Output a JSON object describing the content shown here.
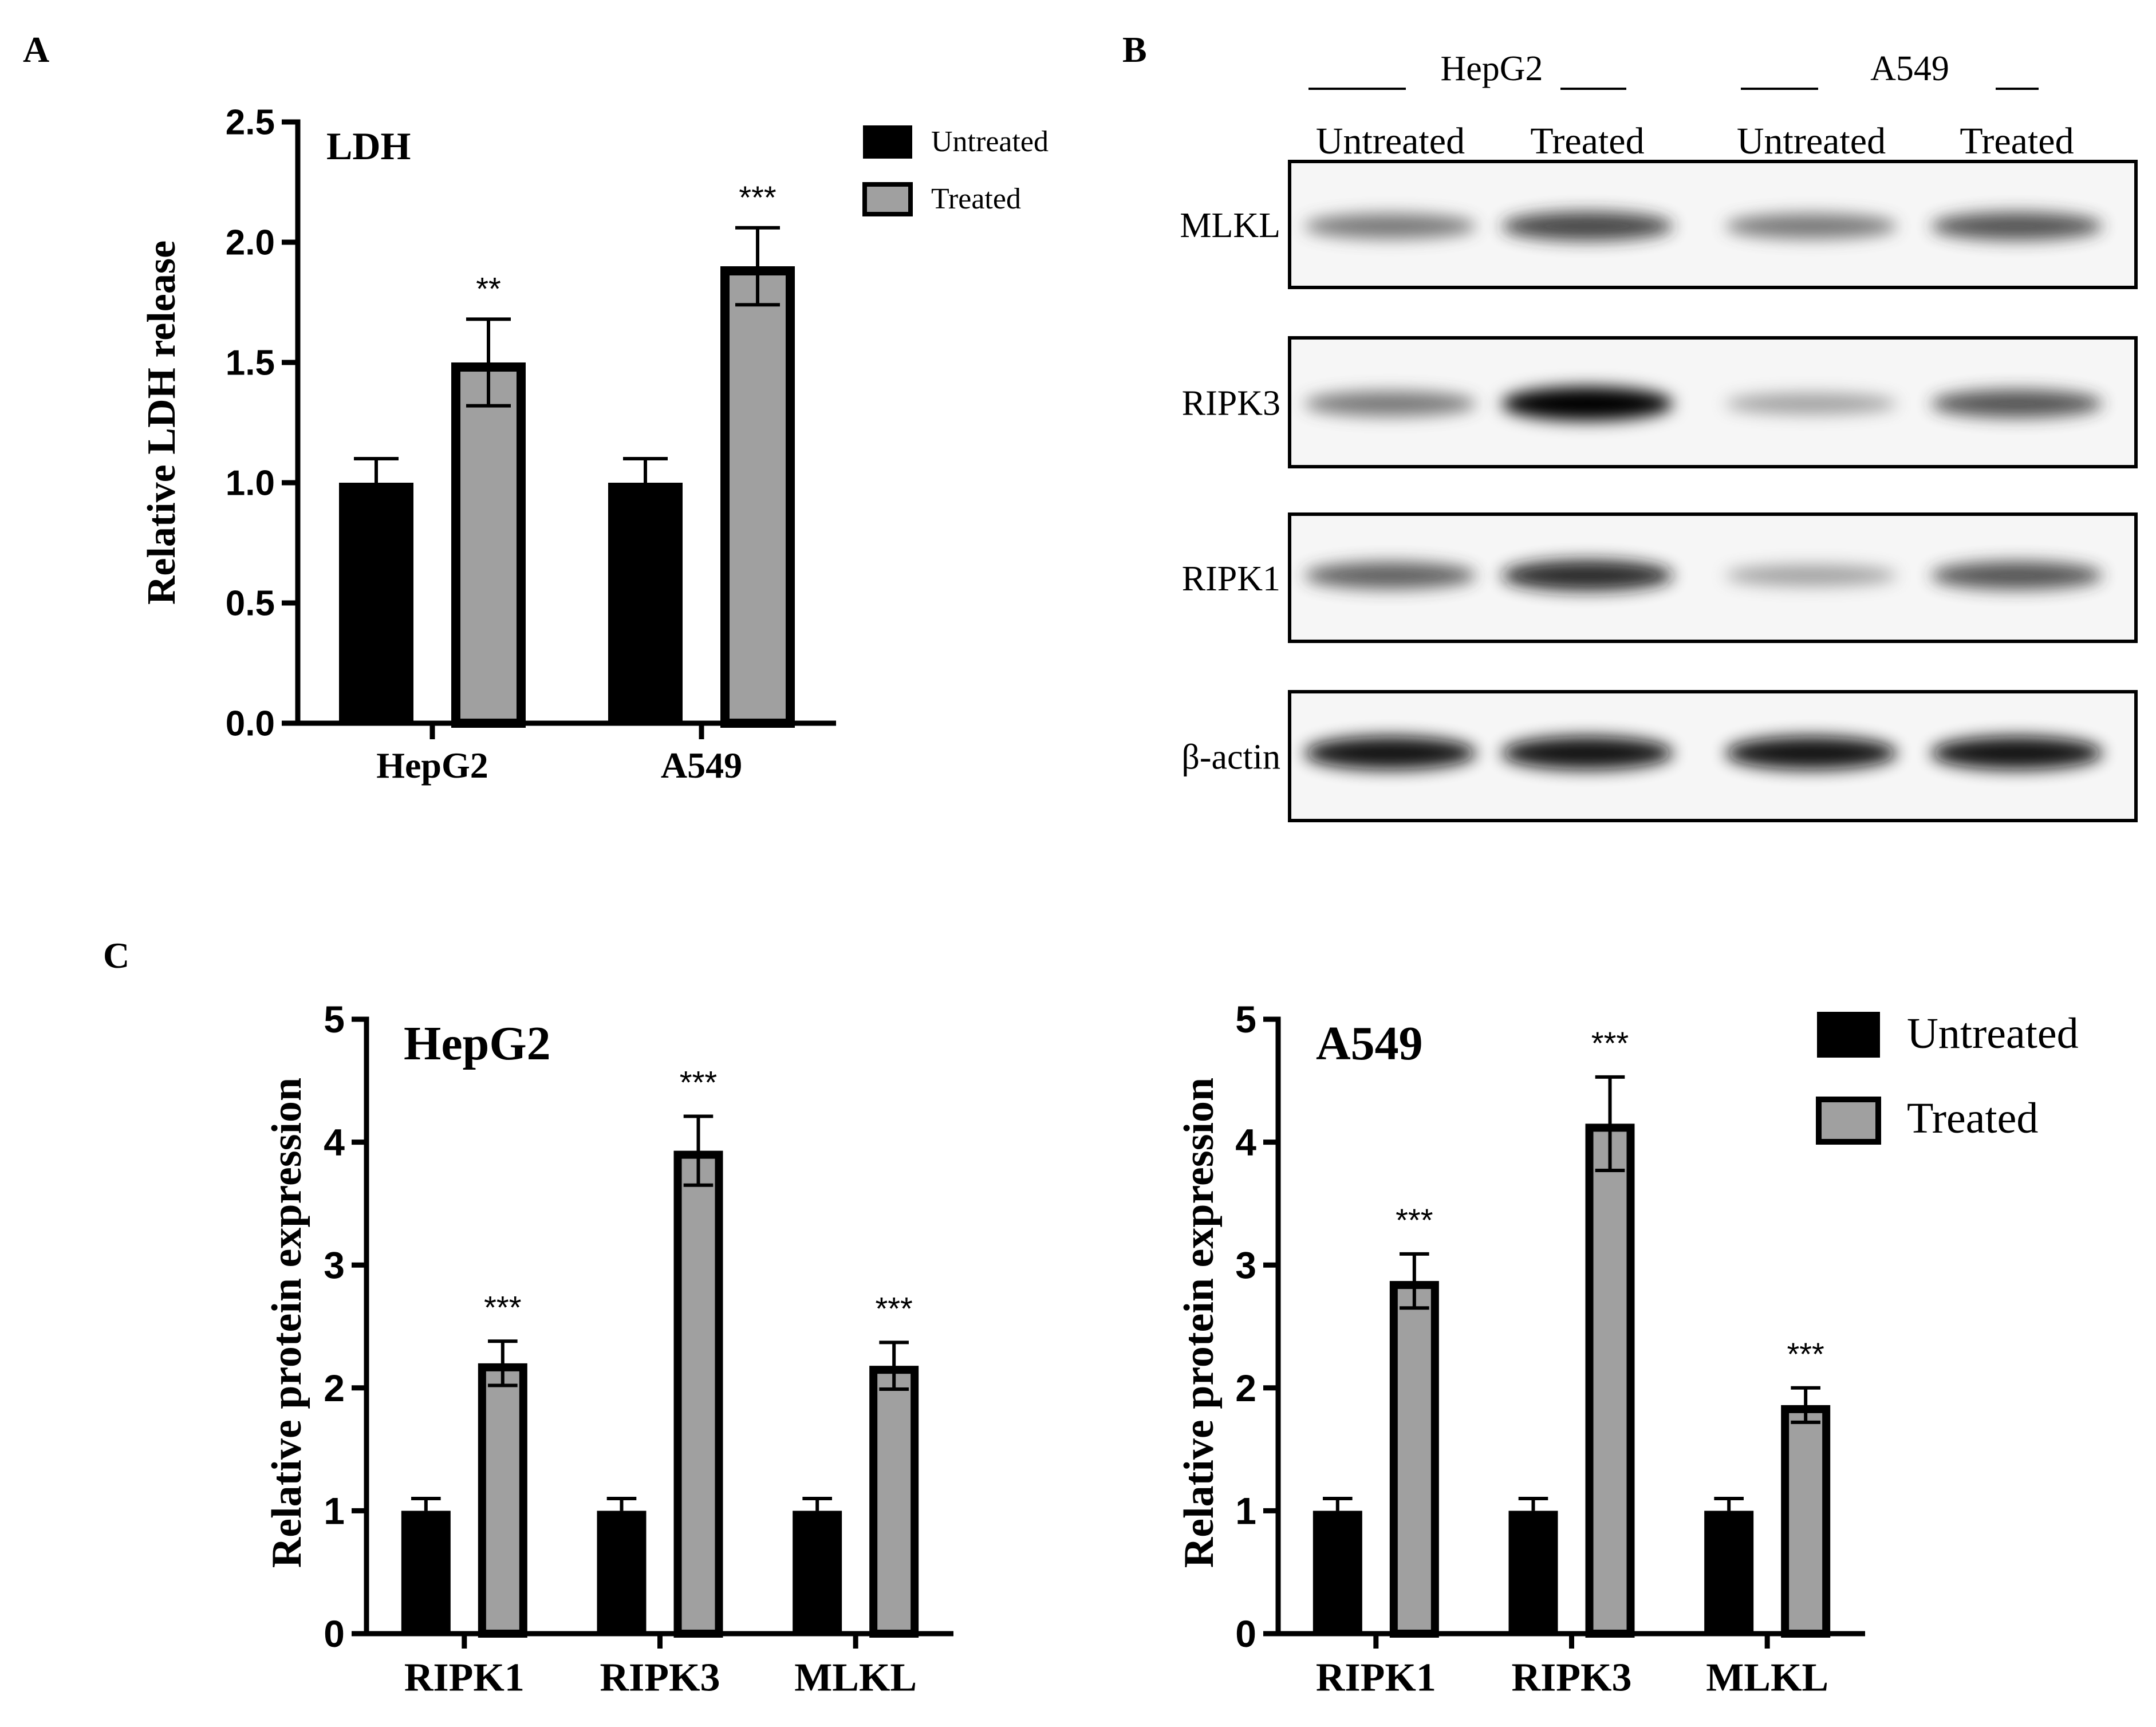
{
  "panels": {
    "a": "A",
    "b": "B",
    "c": "C"
  },
  "colors": {
    "untreated": "#000000",
    "treated": "#a0a0a0",
    "axis": "#000000"
  },
  "chart_data": [
    {
      "id": "ldh",
      "type": "bar",
      "title": "LDH",
      "ylabel": "Relative LDH release",
      "xlabel": "",
      "ylim": [
        0,
        2.5
      ],
      "yticks": [
        "0.0",
        "0.5",
        "1.0",
        "1.5",
        "2.0",
        "2.5"
      ],
      "categories": [
        "HepG2",
        "A549"
      ],
      "series": [
        {
          "name": "Untreated",
          "values": [
            1.0,
            1.0
          ],
          "errors": [
            0.1,
            0.1
          ]
        },
        {
          "name": "Treated",
          "values": [
            1.5,
            1.9
          ],
          "errors": [
            0.18,
            0.16
          ]
        }
      ],
      "significance": [
        "**",
        "***"
      ],
      "legend": {
        "position": "top-right",
        "entries": [
          "Untreated",
          "Treated"
        ]
      }
    },
    {
      "id": "hepg2",
      "type": "bar",
      "title": "HepG2",
      "ylabel": "Relative protein expression",
      "xlabel": "",
      "ylim": [
        0,
        5
      ],
      "yticks": [
        "0",
        "1",
        "2",
        "3",
        "4",
        "5"
      ],
      "categories": [
        "RIPK1",
        "RIPK3",
        "MLKL"
      ],
      "series": [
        {
          "name": "Untreated",
          "values": [
            1.0,
            1.0,
            1.0
          ],
          "errors": [
            0.1,
            0.1,
            0.1
          ]
        },
        {
          "name": "Treated",
          "values": [
            2.2,
            3.93,
            2.18
          ],
          "errors": [
            0.18,
            0.28,
            0.19
          ]
        }
      ],
      "significance": [
        "***",
        "***",
        "***"
      ]
    },
    {
      "id": "a549",
      "type": "bar",
      "title": "A549",
      "ylabel": "Relative protein expression",
      "xlabel": "",
      "ylim": [
        0,
        5
      ],
      "yticks": [
        "0",
        "1",
        "2",
        "3",
        "4",
        "5"
      ],
      "categories": [
        "RIPK1",
        "RIPK3",
        "MLKL"
      ],
      "series": [
        {
          "name": "Untreated",
          "values": [
            1.0,
            1.0,
            1.0
          ],
          "errors": [
            0.1,
            0.1,
            0.1
          ]
        },
        {
          "name": "Treated",
          "values": [
            2.87,
            4.15,
            1.86
          ],
          "errors": [
            0.22,
            0.38,
            0.14
          ]
        }
      ],
      "significance": [
        "***",
        "***",
        "***"
      ],
      "legend": {
        "position": "top-right",
        "entries": [
          "Untreated",
          "Treated"
        ]
      }
    }
  ],
  "western_blot": {
    "groups": [
      "HepG2",
      "A549"
    ],
    "columns": [
      "Untreated",
      "Treated",
      "Untreated",
      "Treated"
    ],
    "proteins": [
      {
        "name": "MLKL",
        "intensities": [
          0.55,
          0.75,
          0.55,
          0.7
        ]
      },
      {
        "name": "RIPK3",
        "intensities": [
          0.55,
          1.0,
          0.35,
          0.7
        ]
      },
      {
        "name": "RIPK1",
        "intensities": [
          0.65,
          0.85,
          0.35,
          0.7
        ]
      },
      {
        "name": "β-actin",
        "intensities": [
          0.95,
          0.95,
          0.95,
          0.95
        ]
      }
    ]
  }
}
